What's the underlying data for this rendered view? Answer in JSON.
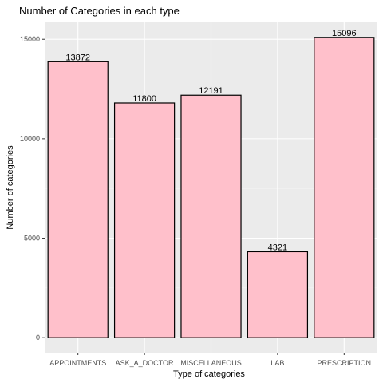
{
  "chart_data": {
    "type": "bar",
    "title": "Number of Categories in each type",
    "xlabel": "Type of categories",
    "ylabel": "Number of categories",
    "categories": [
      "APPOINTMENTS",
      "ASK_A_DOCTOR",
      "MISCELLANEOUS",
      "LAB",
      "PRESCRIPTION"
    ],
    "values": [
      13872,
      11800,
      12191,
      4321,
      15096
    ],
    "data_labels": [
      "13872",
      "11800",
      "12191",
      "4321",
      "15096"
    ],
    "yticks": [
      0,
      5000,
      10000,
      15000
    ],
    "ytick_labels": [
      "0",
      "5000",
      "10000",
      "15000"
    ],
    "ylim": [
      -755,
      15851
    ],
    "grid": true,
    "colors": {
      "bar_fill": "#ffc0cb",
      "bar_stroke": "#000000",
      "panel_background": "#ebebeb",
      "grid_major": "#ffffff",
      "grid_minor": "#f5f5f5"
    }
  }
}
